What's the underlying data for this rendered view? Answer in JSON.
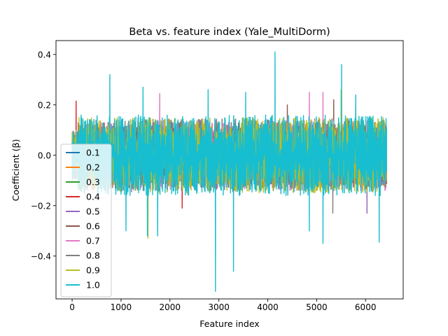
{
  "chart_data": {
    "type": "line",
    "title": "Beta vs. feature index (Yale_MultiDorm)",
    "xlabel": "Feature index",
    "ylabel": "Coefficient (β)",
    "xlim": [
      -330,
      6770
    ],
    "ylim": [
      -0.57,
      0.455
    ],
    "x_ticks": [
      0,
      1000,
      2000,
      3000,
      4000,
      5000,
      6000
    ],
    "y_ticks": [
      -0.4,
      -0.2,
      0.0,
      0.2,
      0.4
    ],
    "y_tick_labels": [
      "−0.4",
      "−0.2",
      "0.0",
      "0.2",
      "0.4"
    ],
    "n_features": 6430,
    "grid": false,
    "legend_position": "center-left",
    "series": [
      {
        "name": "0.1",
        "color": "#1f77b4",
        "envelope": 0.07,
        "spikes": []
      },
      {
        "name": "0.2",
        "color": "#ff7f0e",
        "envelope": 0.08,
        "spikes": []
      },
      {
        "name": "0.3",
        "color": "#2ca02c",
        "envelope": 0.09,
        "spikes": []
      },
      {
        "name": "0.4",
        "color": "#d62728",
        "envelope": 0.11,
        "spikes": [
          {
            "x": 80,
            "y": 0.215
          },
          {
            "x": 2250,
            "y": -0.21
          }
        ]
      },
      {
        "name": "0.5",
        "color": "#9467bd",
        "envelope": 0.12,
        "spikes": [
          {
            "x": 6030,
            "y": -0.23
          }
        ]
      },
      {
        "name": "0.6",
        "color": "#8c564b",
        "envelope": 0.13,
        "spikes": [
          {
            "x": 5350,
            "y": 0.22
          },
          {
            "x": 4400,
            "y": 0.2
          }
        ]
      },
      {
        "name": "0.7",
        "color": "#e377c2",
        "envelope": 0.14,
        "spikes": [
          {
            "x": 1790,
            "y": 0.245
          },
          {
            "x": 4850,
            "y": 0.25
          },
          {
            "x": 5130,
            "y": 0.25
          }
        ]
      },
      {
        "name": "0.8",
        "color": "#7f7f7f",
        "envelope": 0.145,
        "spikes": [
          {
            "x": 5330,
            "y": -0.23
          }
        ]
      },
      {
        "name": "0.9",
        "color": "#bcbd22",
        "envelope": 0.15,
        "spikes": [
          {
            "x": 1550,
            "y": -0.33
          },
          {
            "x": 5500,
            "y": 0.26
          }
        ]
      },
      {
        "name": "1.0",
        "color": "#17becf",
        "envelope": 0.16,
        "spikes": [
          {
            "x": 770,
            "y": 0.32
          },
          {
            "x": 4150,
            "y": 0.41
          },
          {
            "x": 5510,
            "y": 0.36
          },
          {
            "x": 2930,
            "y": -0.54
          },
          {
            "x": 3300,
            "y": -0.46
          },
          {
            "x": 6280,
            "y": -0.345
          },
          {
            "x": 1540,
            "y": -0.32
          },
          {
            "x": 1750,
            "y": -0.32
          },
          {
            "x": 1100,
            "y": -0.3
          },
          {
            "x": 5130,
            "y": -0.35
          },
          {
            "x": 4850,
            "y": -0.3
          },
          {
            "x": 2780,
            "y": 0.26
          },
          {
            "x": 1450,
            "y": 0.27
          },
          {
            "x": 3550,
            "y": 0.25
          },
          {
            "x": 5800,
            "y": 0.24
          }
        ]
      }
    ]
  }
}
